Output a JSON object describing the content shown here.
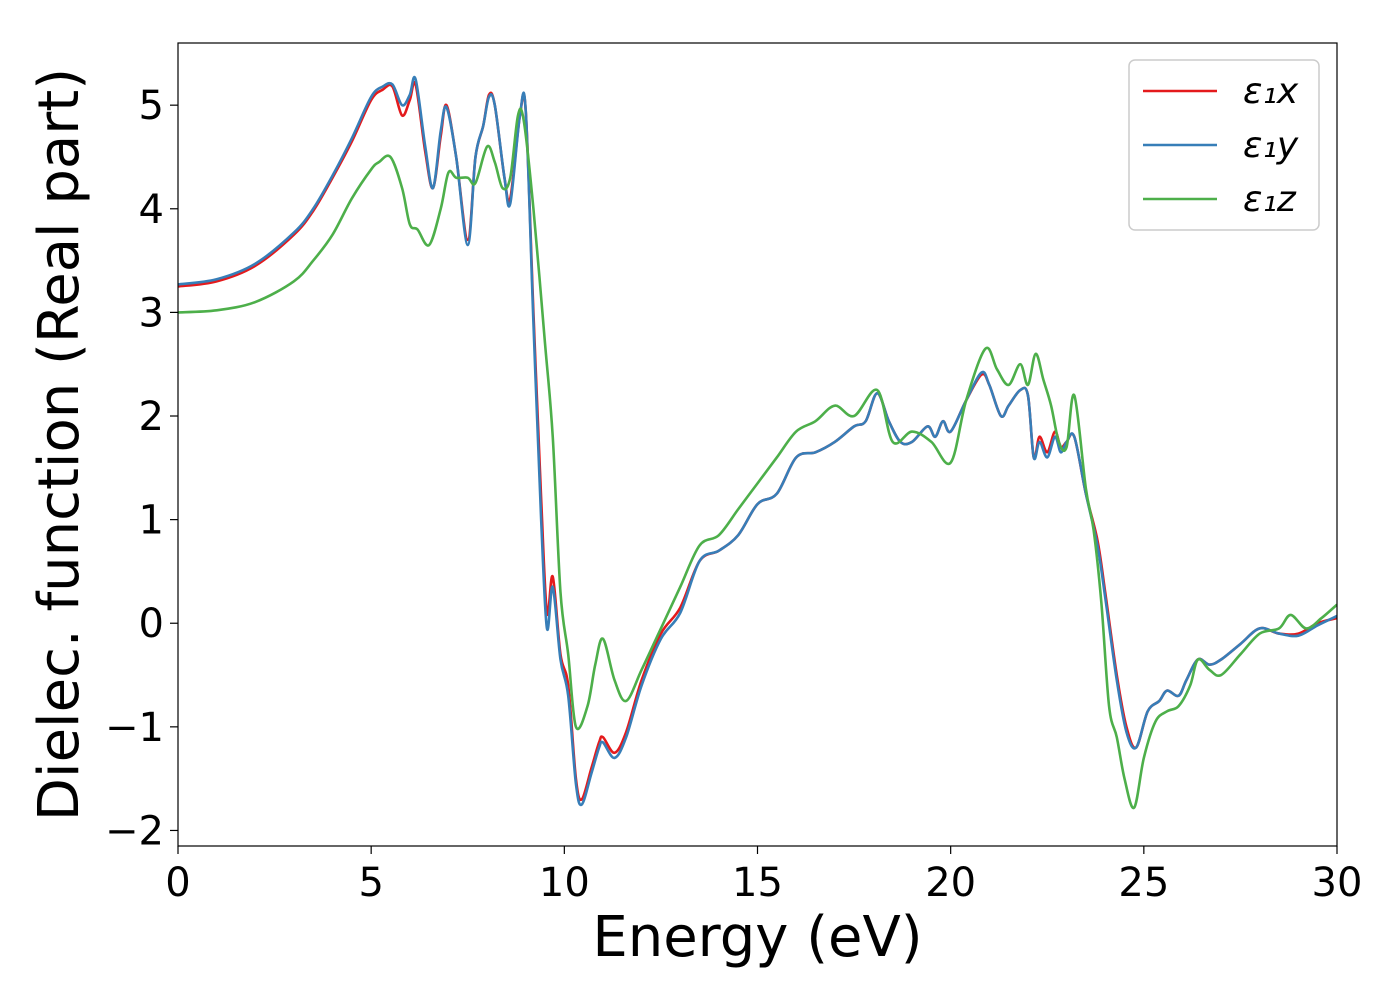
{
  "chart_data": {
    "type": "line",
    "title": "",
    "xlabel": "Energy (eV)",
    "ylabel": "Dielec. function (Real part)",
    "xlim": [
      0,
      30
    ],
    "ylim": [
      -2.15,
      5.6
    ],
    "xticks": [
      0,
      5,
      10,
      15,
      20,
      25,
      30
    ],
    "xtick_labels": [
      "0",
      "5",
      "10",
      "15",
      "20",
      "25",
      "30"
    ],
    "yticks": [
      -2,
      -1,
      0,
      1,
      2,
      3,
      4,
      5
    ],
    "ytick_labels": [
      "−2",
      "−1",
      "0",
      "1",
      "2",
      "3",
      "4",
      "5"
    ],
    "grid": false,
    "legend_position": "top-right",
    "series": [
      {
        "name": "ε₁x",
        "color": "#e41a1c",
        "x": [
          0,
          1,
          2,
          3,
          3.5,
          4,
          4.5,
          5,
          5.3,
          5.55,
          5.8,
          6.0,
          6.15,
          6.4,
          6.6,
          6.8,
          6.95,
          7.2,
          7.5,
          7.7,
          7.9,
          8.05,
          8.2,
          8.45,
          8.6,
          8.85,
          9.0,
          9.2,
          9.4,
          9.55,
          9.7,
          9.9,
          10.1,
          10.3,
          10.45,
          10.7,
          10.9,
          11.0,
          11.3,
          11.6,
          12,
          12.5,
          13,
          13.5,
          14,
          14.5,
          15,
          15.5,
          16,
          16.5,
          17,
          17.5,
          17.8,
          18.1,
          18.4,
          18.7,
          19,
          19.4,
          19.6,
          19.8,
          20,
          20.4,
          20.8,
          21.0,
          21.3,
          21.5,
          21.8,
          22.0,
          22.15,
          22.3,
          22.5,
          22.7,
          22.85,
          23.0,
          23.2,
          23.5,
          23.8,
          24.0,
          24.3,
          24.55,
          24.8,
          25.1,
          25.4,
          25.6,
          25.9,
          26.1,
          26.4,
          26.7,
          27,
          27.5,
          28,
          28.5,
          29,
          29.5,
          30
        ],
        "values": [
          3.25,
          3.3,
          3.45,
          3.75,
          3.98,
          4.3,
          4.65,
          5.05,
          5.15,
          5.18,
          4.9,
          5.05,
          5.2,
          4.55,
          4.2,
          4.7,
          5.0,
          4.5,
          3.7,
          4.5,
          4.8,
          5.1,
          5.0,
          4.3,
          4.1,
          4.9,
          4.95,
          3.0,
          1.2,
          0.1,
          0.45,
          -0.3,
          -0.6,
          -1.5,
          -1.7,
          -1.4,
          -1.15,
          -1.1,
          -1.25,
          -1.05,
          -0.55,
          -0.1,
          0.15,
          0.6,
          0.7,
          0.85,
          1.15,
          1.25,
          1.6,
          1.65,
          1.75,
          1.9,
          1.95,
          2.22,
          1.95,
          1.75,
          1.75,
          1.9,
          1.8,
          1.95,
          1.85,
          2.15,
          2.4,
          2.3,
          2.0,
          2.1,
          2.25,
          2.2,
          1.6,
          1.8,
          1.65,
          1.85,
          1.7,
          1.75,
          1.8,
          1.25,
          0.8,
          0.3,
          -0.5,
          -1.0,
          -1.2,
          -0.85,
          -0.75,
          -0.65,
          -0.7,
          -0.55,
          -0.35,
          -0.4,
          -0.35,
          -0.2,
          -0.05,
          -0.1,
          -0.1,
          0.0,
          0.05
        ]
      },
      {
        "name": "ε₁y",
        "color": "#377eb8",
        "x": [
          0,
          1,
          2,
          3,
          3.5,
          4,
          4.5,
          5,
          5.3,
          5.55,
          5.8,
          6.0,
          6.15,
          6.4,
          6.6,
          6.8,
          6.95,
          7.2,
          7.5,
          7.7,
          7.9,
          8.05,
          8.2,
          8.45,
          8.6,
          8.85,
          9.0,
          9.2,
          9.4,
          9.55,
          9.7,
          9.9,
          10.1,
          10.3,
          10.45,
          10.7,
          10.9,
          11.0,
          11.3,
          11.6,
          12,
          12.5,
          13,
          13.5,
          14,
          14.5,
          15,
          15.5,
          16,
          16.5,
          17,
          17.5,
          17.8,
          18.1,
          18.4,
          18.7,
          19,
          19.4,
          19.6,
          19.8,
          20,
          20.4,
          20.8,
          21.0,
          21.3,
          21.5,
          21.8,
          22.0,
          22.15,
          22.3,
          22.5,
          22.7,
          22.85,
          23.0,
          23.2,
          23.5,
          23.8,
          24.0,
          24.3,
          24.55,
          24.8,
          25.1,
          25.4,
          25.6,
          25.9,
          26.1,
          26.4,
          26.7,
          27,
          27.5,
          28,
          28.5,
          29,
          29.5,
          30
        ],
        "values": [
          3.27,
          3.32,
          3.47,
          3.77,
          4.0,
          4.32,
          4.68,
          5.08,
          5.18,
          5.2,
          5.0,
          5.1,
          5.25,
          4.6,
          4.2,
          4.75,
          4.98,
          4.5,
          3.65,
          4.5,
          4.8,
          5.08,
          5.0,
          4.3,
          4.05,
          4.9,
          4.95,
          2.9,
          1.0,
          -0.05,
          0.35,
          -0.35,
          -0.7,
          -1.55,
          -1.75,
          -1.45,
          -1.2,
          -1.15,
          -1.3,
          -1.1,
          -0.6,
          -0.15,
          0.1,
          0.6,
          0.7,
          0.85,
          1.15,
          1.25,
          1.6,
          1.65,
          1.75,
          1.9,
          1.95,
          2.22,
          1.95,
          1.75,
          1.75,
          1.9,
          1.8,
          1.95,
          1.85,
          2.15,
          2.42,
          2.3,
          2.0,
          2.1,
          2.25,
          2.2,
          1.6,
          1.75,
          1.6,
          1.8,
          1.65,
          1.75,
          1.8,
          1.25,
          0.75,
          0.25,
          -0.55,
          -1.05,
          -1.2,
          -0.85,
          -0.75,
          -0.65,
          -0.7,
          -0.55,
          -0.35,
          -0.4,
          -0.35,
          -0.2,
          -0.05,
          -0.1,
          -0.12,
          -0.02,
          0.07
        ]
      },
      {
        "name": "ε₁z",
        "color": "#4daf4a",
        "x": [
          0,
          1,
          2,
          3,
          3.5,
          4,
          4.5,
          5,
          5.2,
          5.5,
          5.8,
          6.0,
          6.2,
          6.5,
          6.8,
          7.0,
          7.2,
          7.5,
          7.7,
          8.0,
          8.2,
          8.4,
          8.6,
          8.8,
          8.95,
          9.2,
          9.5,
          9.7,
          9.9,
          10.1,
          10.3,
          10.6,
          10.8,
          11.0,
          11.3,
          11.6,
          12,
          12.5,
          13,
          13.5,
          14,
          14.5,
          15,
          15.5,
          16,
          16.5,
          17,
          17.5,
          18.1,
          18.5,
          19,
          19.5,
          20,
          20.4,
          20.9,
          21.2,
          21.5,
          21.8,
          22.0,
          22.2,
          22.4,
          22.6,
          22.8,
          23.0,
          23.2,
          23.5,
          23.7,
          23.9,
          24.1,
          24.3,
          24.5,
          24.75,
          25.0,
          25.3,
          25.6,
          25.9,
          26.2,
          26.4,
          26.7,
          27,
          27.5,
          28,
          28.5,
          28.8,
          29.2,
          29.6,
          30
        ],
        "values": [
          3.0,
          3.02,
          3.1,
          3.3,
          3.5,
          3.75,
          4.1,
          4.38,
          4.45,
          4.5,
          4.2,
          3.85,
          3.8,
          3.65,
          4.0,
          4.35,
          4.3,
          4.3,
          4.25,
          4.6,
          4.45,
          4.2,
          4.3,
          4.9,
          4.85,
          4.0,
          2.7,
          1.8,
          0.3,
          -0.3,
          -1.0,
          -0.8,
          -0.4,
          -0.15,
          -0.55,
          -0.75,
          -0.45,
          -0.05,
          0.35,
          0.75,
          0.85,
          1.1,
          1.35,
          1.6,
          1.85,
          1.95,
          2.1,
          2.0,
          2.25,
          1.75,
          1.85,
          1.75,
          1.55,
          2.15,
          2.65,
          2.45,
          2.3,
          2.5,
          2.3,
          2.6,
          2.35,
          2.1,
          1.75,
          1.7,
          2.2,
          1.3,
          0.9,
          0.2,
          -0.8,
          -1.1,
          -1.5,
          -1.78,
          -1.3,
          -0.95,
          -0.85,
          -0.8,
          -0.6,
          -0.35,
          -0.45,
          -0.5,
          -0.3,
          -0.1,
          -0.05,
          0.08,
          -0.05,
          0.05,
          0.18
        ]
      }
    ]
  }
}
